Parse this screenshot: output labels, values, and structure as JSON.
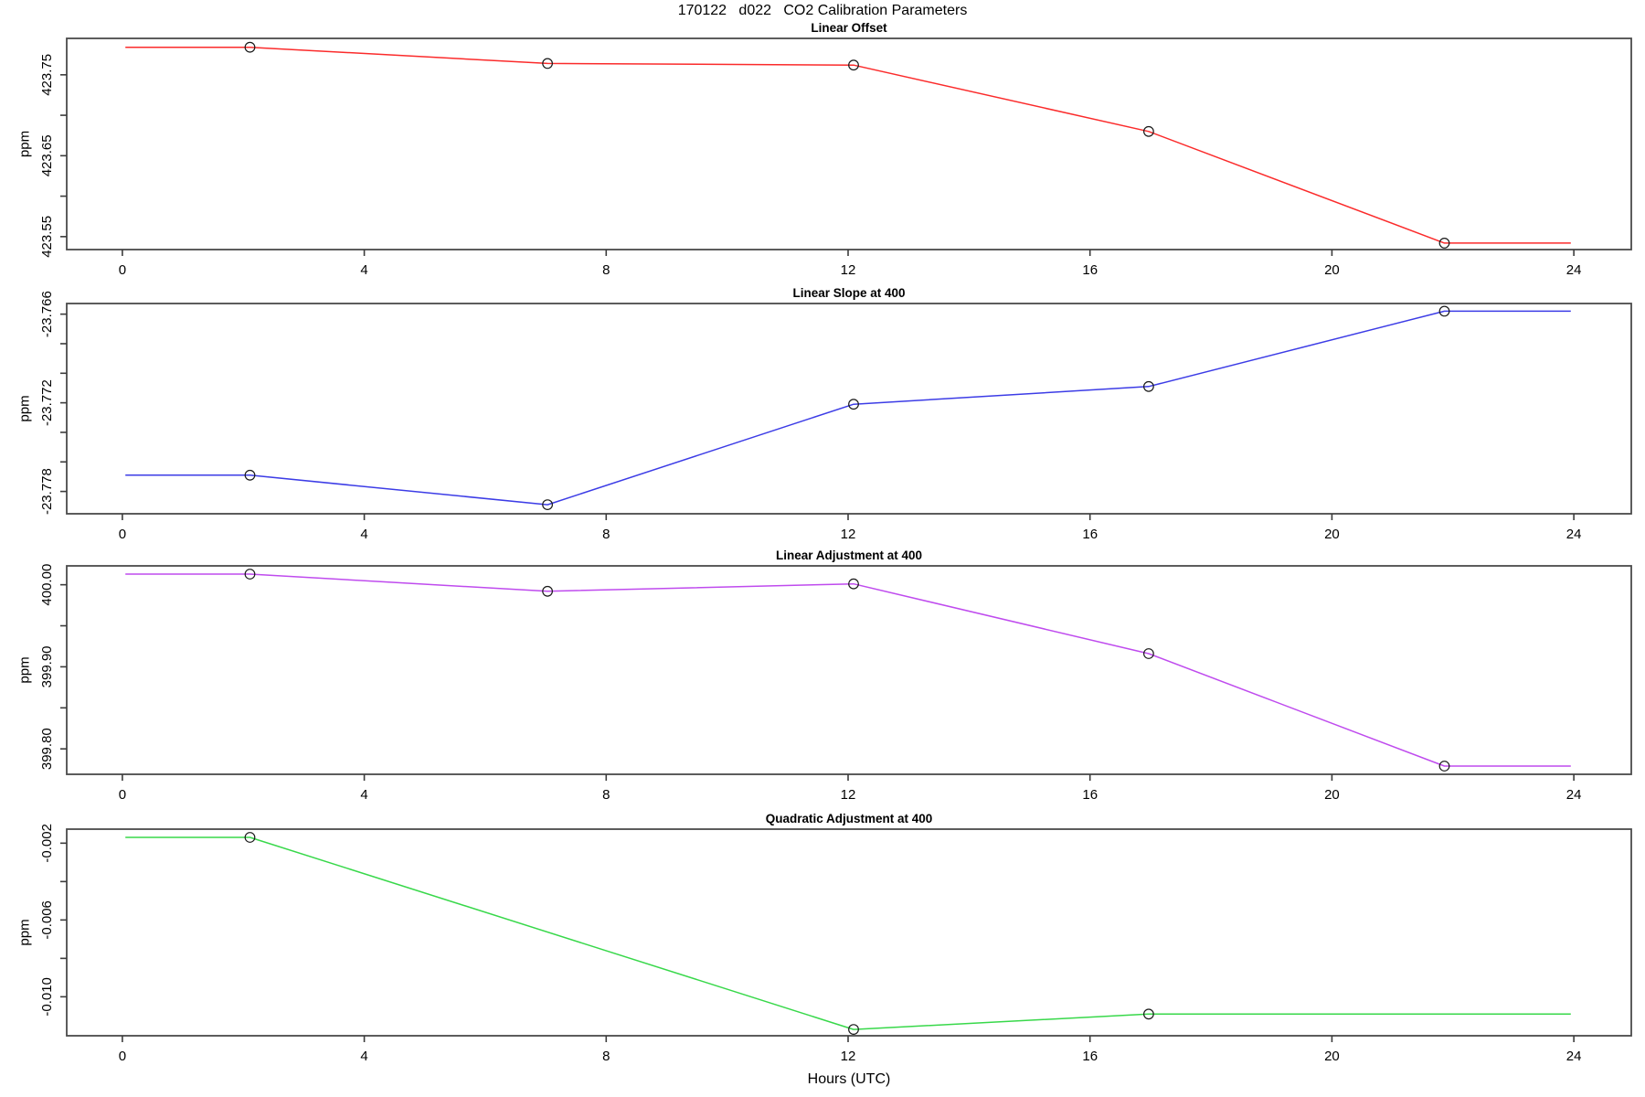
{
  "title": "170122   d022   CO2 Calibration Parameters",
  "chart_data": {
    "type": "line",
    "title": "170122   d022   CO2 Calibration Parameters",
    "y_unit": "ppm",
    "x_axis": {
      "label": "Hours (UTC)",
      "ticks": [
        0,
        4,
        8,
        12,
        16,
        20,
        24
      ],
      "xlim": [
        -0.92,
        24.95
      ],
      "grid": false
    },
    "line_extension": {
      "start": 0.05,
      "end": 23.95
    },
    "marker": "open-circle",
    "legend": "none",
    "panels": [
      {
        "title": "Linear Offset",
        "color": "#fb2b2b",
        "ylim_top": 423.795,
        "ylim_bottom": 423.534,
        "yticks": [
          {
            "v": 423.55,
            "label": "423.55"
          },
          {
            "v": 423.6,
            "label": ""
          },
          {
            "v": 423.65,
            "label": "423.65"
          },
          {
            "v": 423.7,
            "label": ""
          },
          {
            "v": 423.75,
            "label": "423.75"
          }
        ],
        "times": [
          2.11,
          7.03,
          12.09,
          16.97,
          21.86
        ],
        "values": [
          423.784,
          423.764,
          423.762,
          423.68,
          423.542
        ]
      },
      {
        "title": "Linear Slope at 400",
        "color": "#3c3ce6",
        "ylim_top": -23.76528,
        "ylim_bottom": -23.77951,
        "yticks": [
          {
            "v": -23.778,
            "label": "-23.778"
          },
          {
            "v": -23.776,
            "label": ""
          },
          {
            "v": -23.774,
            "label": ""
          },
          {
            "v": -23.772,
            "label": "-23.772"
          },
          {
            "v": -23.77,
            "label": ""
          },
          {
            "v": -23.768,
            "label": ""
          },
          {
            "v": -23.766,
            "label": "-23.766"
          }
        ],
        "times": [
          2.11,
          7.03,
          12.09,
          16.97,
          21.86
        ],
        "values": [
          -23.7769,
          -23.7789,
          -23.7721,
          -23.7709,
          -23.7658
        ]
      },
      {
        "title": "Linear Adjustment at 400",
        "color": "#bf4bee",
        "ylim_top": 400.023,
        "ylim_bottom": 399.769,
        "yticks": [
          {
            "v": 399.8,
            "label": "399.80"
          },
          {
            "v": 399.85,
            "label": ""
          },
          {
            "v": 399.9,
            "label": "399.90"
          },
          {
            "v": 399.95,
            "label": ""
          },
          {
            "v": 400.0,
            "label": "400.00"
          }
        ],
        "times": [
          2.11,
          7.03,
          12.09,
          16.97,
          21.86
        ],
        "values": [
          400.013,
          399.992,
          400.001,
          399.916,
          399.779
        ]
      },
      {
        "title": "Quadratic Adjustment at 400",
        "color": "#38d84a",
        "ylim_top": -0.00127,
        "ylim_bottom": -0.01203,
        "yticks": [
          {
            "v": -0.01,
            "label": "-0.010"
          },
          {
            "v": -0.008,
            "label": ""
          },
          {
            "v": -0.006,
            "label": "-0.006"
          },
          {
            "v": -0.004,
            "label": ""
          },
          {
            "v": -0.002,
            "label": "-0.002"
          }
        ],
        "times": [
          2.11,
          12.09,
          16.97
        ],
        "values": [
          -0.0017,
          -0.0117,
          -0.0109
        ]
      }
    ]
  }
}
